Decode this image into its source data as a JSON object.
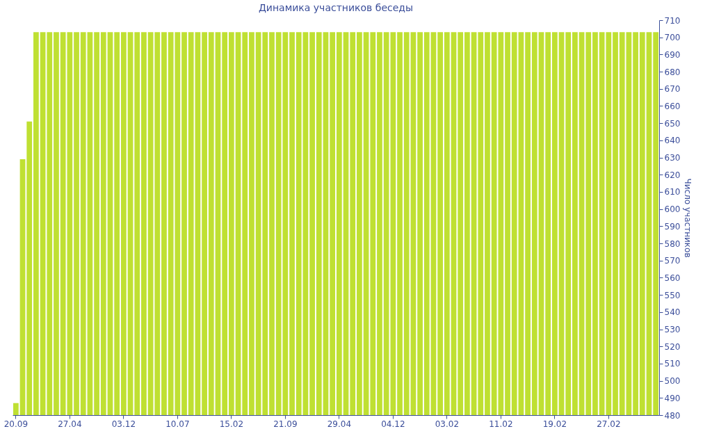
{
  "chart_data": {
    "type": "bar",
    "title": "Динамика участников беседы",
    "ylabel": "Число участников",
    "categories": [
      "20.09",
      null,
      null,
      null,
      null,
      null,
      null,
      null,
      "27.04",
      null,
      null,
      null,
      null,
      null,
      null,
      null,
      "03.12",
      null,
      null,
      null,
      null,
      null,
      null,
      null,
      "10.07",
      null,
      null,
      null,
      null,
      null,
      null,
      null,
      "15.02",
      null,
      null,
      null,
      null,
      null,
      null,
      null,
      "21.09",
      null,
      null,
      null,
      null,
      null,
      null,
      null,
      "29.04",
      null,
      null,
      null,
      null,
      null,
      null,
      null,
      "04.12",
      null,
      null,
      null,
      null,
      null,
      null,
      null,
      "03.02",
      null,
      null,
      null,
      null,
      null,
      null,
      null,
      "11.02",
      null,
      null,
      null,
      null,
      null,
      null,
      null,
      "19.02",
      null,
      null,
      null,
      null,
      null,
      null,
      null,
      "27.02",
      null,
      null,
      null,
      null,
      null,
      null,
      null
    ],
    "values": [
      487,
      629,
      651,
      703,
      703,
      703,
      703,
      703,
      703,
      703,
      703,
      703,
      703,
      703,
      703,
      703,
      703,
      703,
      703,
      703,
      703,
      703,
      703,
      703,
      703,
      703,
      703,
      703,
      703,
      703,
      703,
      703,
      703,
      703,
      703,
      703,
      703,
      703,
      703,
      703,
      703,
      703,
      703,
      703,
      703,
      703,
      703,
      703,
      703,
      703,
      703,
      703,
      703,
      703,
      703,
      703,
      703,
      703,
      703,
      703,
      703,
      703,
      703,
      703,
      703,
      703,
      703,
      703,
      703,
      703,
      703,
      703,
      703,
      703,
      703,
      703,
      703,
      703,
      703,
      703,
      703,
      703,
      703,
      703,
      703,
      703,
      703,
      703,
      703,
      703,
      703,
      703,
      703,
      703,
      703,
      703
    ],
    "color": "#bfe032",
    "ylim": [
      480,
      710
    ],
    "yticks": [
      480,
      490,
      500,
      510,
      520,
      530,
      540,
      550,
      560,
      570,
      580,
      590,
      600,
      610,
      620,
      630,
      640,
      650,
      660,
      670,
      680,
      690,
      700,
      710
    ],
    "grid": false
  }
}
